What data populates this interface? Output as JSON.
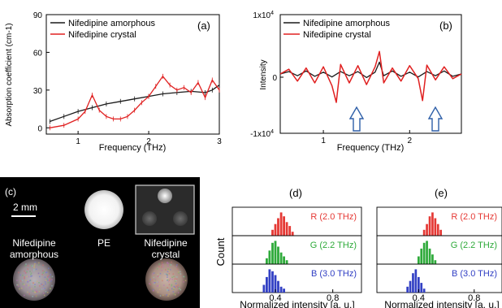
{
  "colors": {
    "amorphous": "#1a1a1a",
    "crystal": "#e02020",
    "red_bins": "#e53935",
    "green_bins": "#2eaa3a",
    "blue_bins": "#3240c4",
    "arrow": "#2e5fa8"
  },
  "panel_a": {
    "label": "(a)",
    "legend": [
      "Nifedipine amorphous",
      "Nifedipine crystal"
    ],
    "ylabel": "Absorption coefficient (cm-1)",
    "xlabel": "Frequency (THz)",
    "xticks": [
      "1",
      "2",
      "3"
    ],
    "yticks": [
      "0",
      "30",
      "60",
      "90"
    ]
  },
  "panel_b": {
    "label": "(b)",
    "legend": [
      "Nifedipine amorphous",
      "Nifedipine crystal"
    ],
    "ylabel": "Intensity",
    "xlabel": "Frequency (THz)",
    "xticks": [
      "1",
      "2"
    ],
    "ytop": "1x10",
    "ytop_exp": "4",
    "yzero": "0",
    "ybottom": "-1x10",
    "ybottom_exp": "4"
  },
  "panel_c": {
    "label": "(c)",
    "scale_bar": "2 mm",
    "pe": "PE",
    "amorphous_line1": "Nifedipine",
    "amorphous_line2": "amorphous",
    "crystal_line1": "Nifedipine",
    "crystal_line2": "crystal"
  },
  "panel_d": {
    "label": "(d)"
  },
  "panel_e": {
    "label": "(e)"
  },
  "hist": {
    "ylabel": "Count",
    "xlabel": "Normalized intensity [a. u.]",
    "xticks": [
      "0.4",
      "0.8"
    ],
    "rows": [
      "R (2.0 THz)",
      "G (2.2 THz)",
      "B (3.0 THz)"
    ]
  },
  "chart_data": [
    {
      "type": "line",
      "title": "(a)",
      "xlabel": "Frequency (THz)",
      "ylabel": "Absorption coefficient (cm-1)",
      "xlim": [
        0.55,
        3.0
      ],
      "ylim": [
        -5,
        90
      ],
      "series": [
        {
          "name": "Nifedipine amorphous",
          "x": [
            0.6,
            0.8,
            1.0,
            1.2,
            1.4,
            1.6,
            1.8,
            2.0,
            2.2,
            2.4,
            2.6,
            2.8,
            2.9,
            3.0
          ],
          "y": [
            5,
            9,
            13,
            16,
            19,
            21,
            23,
            25,
            27,
            28,
            29,
            28,
            30,
            34
          ]
        },
        {
          "name": "Nifedipine crystal",
          "x": [
            0.6,
            0.8,
            1.0,
            1.1,
            1.2,
            1.3,
            1.4,
            1.5,
            1.6,
            1.7,
            1.8,
            1.9,
            2.0,
            2.1,
            2.2,
            2.3,
            2.4,
            2.5,
            2.6,
            2.7,
            2.8,
            2.9,
            3.0
          ],
          "y": [
            0,
            2,
            7,
            13,
            26,
            14,
            9,
            7,
            7,
            9,
            14,
            20,
            25,
            33,
            41,
            34,
            30,
            32,
            28,
            36,
            24,
            38,
            30
          ]
        }
      ]
    },
    {
      "type": "line",
      "title": "(b)",
      "xlabel": "Frequency (THz)",
      "ylabel": "Intensity",
      "xlim": [
        0.5,
        2.6
      ],
      "ylim": [
        -10000,
        10000
      ],
      "series": [
        {
          "name": "Nifedipine amorphous",
          "x": [
            0.5,
            0.6,
            0.7,
            0.8,
            0.9,
            1.0,
            1.1,
            1.2,
            1.3,
            1.4,
            1.5,
            1.6,
            1.65,
            1.7,
            1.8,
            1.9,
            2.0,
            2.1,
            2.2,
            2.3,
            2.4,
            2.5,
            2.6
          ],
          "y": [
            0,
            400,
            -300,
            500,
            -400,
            300,
            -500,
            400,
            -300,
            400,
            -600,
            300,
            2000,
            -300,
            500,
            -400,
            300,
            -500,
            400,
            -300,
            500,
            -400,
            0
          ]
        },
        {
          "name": "Nifedipine crystal",
          "x": [
            0.5,
            0.6,
            0.7,
            0.8,
            0.9,
            1.0,
            1.1,
            1.15,
            1.2,
            1.3,
            1.4,
            1.5,
            1.6,
            1.65,
            1.7,
            1.8,
            1.9,
            2.0,
            2.1,
            2.15,
            2.2,
            2.3,
            2.4,
            2.5,
            2.6
          ],
          "y": [
            0,
            800,
            -1200,
            1000,
            -1500,
            1200,
            -2000,
            -4800,
            1600,
            -1500,
            1400,
            -1800,
            1200,
            3800,
            -1500,
            1000,
            -1200,
            1400,
            -800,
            -4500,
            1500,
            -1000,
            1200,
            -800,
            0
          ]
        }
      ]
    },
    {
      "type": "bar",
      "title": "(d)",
      "xlabel": "Normalized intensity [a. u.]",
      "ylabel": "Count",
      "xlim": [
        0.1,
        1.0
      ],
      "series": [
        {
          "name": "R (2.0 THz)",
          "x": [
            0.38,
            0.4,
            0.42,
            0.44,
            0.46,
            0.48,
            0.5,
            0.52
          ],
          "values": [
            3,
            6,
            9,
            12,
            10,
            7,
            5,
            2
          ]
        },
        {
          "name": "G (2.2 THz)",
          "x": [
            0.34,
            0.36,
            0.38,
            0.4,
            0.42,
            0.44,
            0.46,
            0.48
          ],
          "values": [
            3,
            7,
            11,
            12,
            9,
            6,
            4,
            2
          ]
        },
        {
          "name": "B (3.0 THz)",
          "x": [
            0.32,
            0.34,
            0.36,
            0.38,
            0.4,
            0.42,
            0.44,
            0.46
          ],
          "values": [
            4,
            8,
            12,
            11,
            9,
            6,
            3,
            2
          ]
        }
      ]
    },
    {
      "type": "bar",
      "title": "(e)",
      "xlabel": "Normalized intensity [a. u.]",
      "ylabel": "",
      "xlim": [
        0.1,
        1.0
      ],
      "series": [
        {
          "name": "R (2.0 THz)",
          "x": [
            0.44,
            0.46,
            0.48,
            0.5,
            0.52,
            0.54,
            0.56
          ],
          "values": [
            3,
            6,
            10,
            12,
            9,
            6,
            3
          ]
        },
        {
          "name": "G (2.2 THz)",
          "x": [
            0.4,
            0.42,
            0.44,
            0.46,
            0.48,
            0.5,
            0.52
          ],
          "values": [
            4,
            8,
            11,
            12,
            8,
            5,
            2
          ]
        },
        {
          "name": "B (3.0 THz)",
          "x": [
            0.32,
            0.34,
            0.36,
            0.38,
            0.4,
            0.42,
            0.44
          ],
          "values": [
            3,
            6,
            10,
            12,
            8,
            5,
            2
          ]
        }
      ]
    }
  ]
}
